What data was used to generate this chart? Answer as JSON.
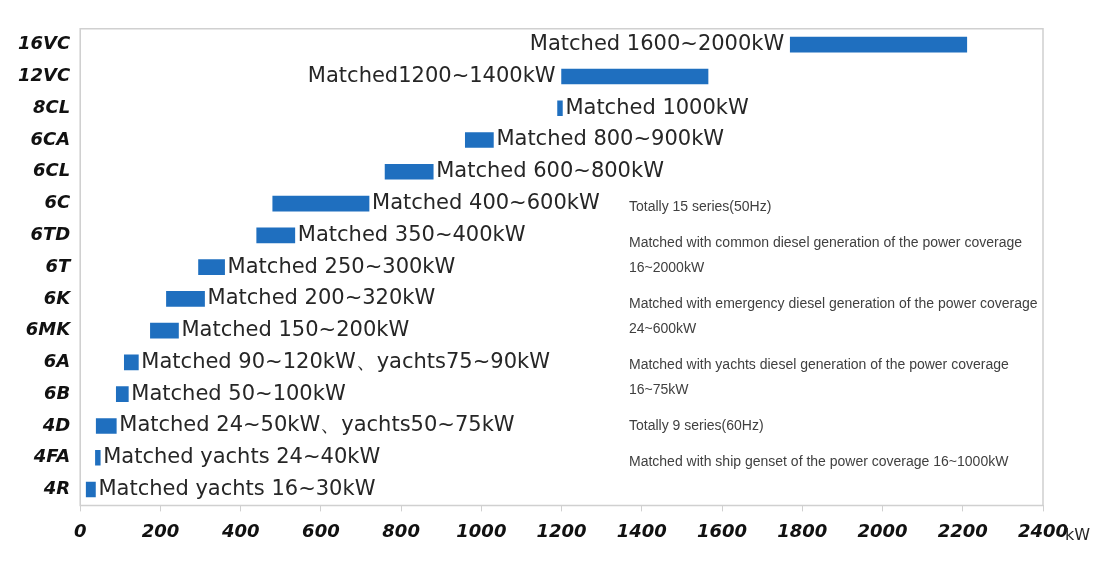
{
  "chart_data": {
    "type": "bar",
    "orientation": "horizontal",
    "categories": [
      "16VC",
      "12VC",
      "8CL",
      "6CA",
      "6CL",
      "6C",
      "6TD",
      "6T",
      "6K",
      "6MK",
      "6A",
      "6B",
      "4D",
      "4FA",
      "4R"
    ],
    "base": [
      1770,
      1200,
      1190,
      960,
      760,
      480,
      440,
      295,
      215,
      175,
      110,
      90,
      40,
      38,
      15
    ],
    "values": [
      440,
      365,
      12,
      70,
      120,
      240,
      95,
      65,
      95,
      70,
      35,
      30,
      50,
      12,
      23
    ],
    "color": "#1f6fbf",
    "value_labels": [
      "Matched 1600~2000kW",
      "Matched1200~1400kW",
      "Matched 1000kW",
      "Matched 800~900kW",
      "Matched 600~800kW",
      "Matched 400~600kW",
      "Matched 350~400kW",
      "Matched 250~300kW",
      "Matched 200~320kW",
      "Matched 150~200kW",
      "Matched 90~120kW、yachts75~90kW",
      "Matched 50~100kW",
      "Matched 24~50kW、yachts50~75kW",
      "Matched yachts 24~40kW",
      "Matched yachts 16~30kW"
    ],
    "xlim": [
      0,
      2400
    ],
    "xticks": [
      0,
      200,
      400,
      600,
      800,
      1000,
      1200,
      1400,
      1600,
      1800,
      2000,
      2200,
      2400
    ],
    "xlabel": "kW",
    "annotations": [
      "Totally 15 series(50Hz)",
      "Matched with common diesel generation of the power coverage 16~2000kW",
      "Matched with emergency diesel generation of the power coverage 24~600kW",
      "Matched with yachts diesel generation of the power coverage 16~75kW",
      "Totally 9 series(60Hz)",
      "Matched with ship genset of the power coverage 16~1000kW"
    ],
    "grid": false,
    "legend": false
  }
}
